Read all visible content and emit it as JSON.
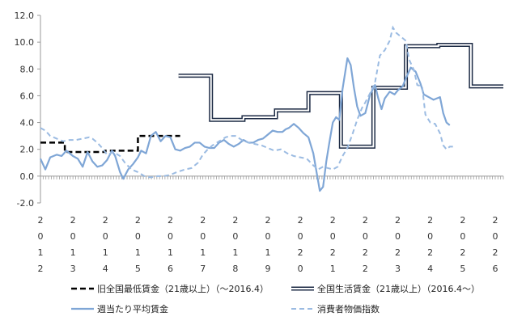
{
  "chart_data": {
    "type": "line",
    "ylim": [
      -2.0,
      12.0
    ],
    "y_ticks": [
      -2.0,
      0.0,
      2.0,
      4.0,
      6.0,
      8.0,
      10.0,
      12.0
    ],
    "y_tick_labels": [
      "-2.0",
      "0.0",
      "2.0",
      "4.0",
      "6.0",
      "8.0",
      "10.0",
      "12.0"
    ],
    "x_range": [
      2012.0,
      2026.25
    ],
    "x_ticks": [
      2012,
      2013,
      2014,
      2015,
      2016,
      2017,
      2018,
      2019,
      2020,
      2021,
      2022,
      2023,
      2024,
      2025,
      2026
    ],
    "x_tick_labels": [
      "2012",
      "2013",
      "2014",
      "2015",
      "2016",
      "2017",
      "2018",
      "2019",
      "2020",
      "2021",
      "2022",
      "2023",
      "2024",
      "2025",
      "2026"
    ],
    "gridlines": false,
    "legend_position": "bottom",
    "series": [
      {
        "name": "旧全国最低賃金（21歳以上）（～2016.4）",
        "style": "dashed-bold",
        "color": "#000000",
        "points": [
          [
            2012.0,
            2.5
          ],
          [
            2012.75,
            2.5
          ],
          [
            2012.75,
            1.8
          ],
          [
            2014.0,
            1.8
          ],
          [
            2014.0,
            1.9
          ],
          [
            2015.0,
            1.9
          ],
          [
            2015.0,
            3.0
          ],
          [
            2016.3,
            3.0
          ]
        ]
      },
      {
        "name": "全国生活賃金（21歳以上）（2016.4～）",
        "style": "double",
        "color": "#1c2a44",
        "points": [
          [
            2016.25,
            7.5
          ],
          [
            2017.25,
            7.5
          ],
          [
            2017.25,
            4.2
          ],
          [
            2018.25,
            4.2
          ],
          [
            2018.25,
            4.4
          ],
          [
            2019.25,
            4.4
          ],
          [
            2019.25,
            4.9
          ],
          [
            2020.25,
            4.9
          ],
          [
            2020.25,
            6.2
          ],
          [
            2021.25,
            6.2
          ],
          [
            2021.25,
            2.2
          ],
          [
            2022.25,
            2.2
          ],
          [
            2022.25,
            6.6
          ],
          [
            2023.25,
            6.6
          ],
          [
            2023.25,
            9.7
          ],
          [
            2024.25,
            9.7
          ],
          [
            2024.25,
            9.8
          ],
          [
            2025.25,
            9.8
          ],
          [
            2025.25,
            6.7
          ],
          [
            2026.25,
            6.7
          ]
        ]
      },
      {
        "name": "週当たり平均賃金",
        "style": "solid",
        "color": "#7fa6d6",
        "points": [
          [
            2012.0,
            1.3
          ],
          [
            2012.15,
            0.5
          ],
          [
            2012.3,
            1.4
          ],
          [
            2012.5,
            1.6
          ],
          [
            2012.65,
            1.5
          ],
          [
            2012.8,
            1.9
          ],
          [
            2013.0,
            1.5
          ],
          [
            2013.15,
            1.3
          ],
          [
            2013.3,
            0.7
          ],
          [
            2013.45,
            1.8
          ],
          [
            2013.6,
            1.1
          ],
          [
            2013.75,
            0.7
          ],
          [
            2013.9,
            0.8
          ],
          [
            2014.05,
            1.2
          ],
          [
            2014.2,
            1.9
          ],
          [
            2014.3,
            1.5
          ],
          [
            2014.45,
            0.3
          ],
          [
            2014.55,
            -0.2
          ],
          [
            2014.7,
            0.5
          ],
          [
            2014.85,
            0.9
          ],
          [
            2015.0,
            1.4
          ],
          [
            2015.1,
            1.9
          ],
          [
            2015.25,
            1.7
          ],
          [
            2015.4,
            3.0
          ],
          [
            2015.55,
            3.3
          ],
          [
            2015.7,
            2.6
          ],
          [
            2015.85,
            3.0
          ],
          [
            2016.0,
            2.9
          ],
          [
            2016.15,
            2.0
          ],
          [
            2016.3,
            1.9
          ],
          [
            2016.45,
            2.1
          ],
          [
            2016.6,
            2.2
          ],
          [
            2016.75,
            2.5
          ],
          [
            2016.9,
            2.5
          ],
          [
            2017.05,
            2.2
          ],
          [
            2017.2,
            2.1
          ],
          [
            2017.35,
            2.1
          ],
          [
            2017.5,
            2.5
          ],
          [
            2017.65,
            2.7
          ],
          [
            2017.8,
            2.4
          ],
          [
            2017.95,
            2.2
          ],
          [
            2018.1,
            2.4
          ],
          [
            2018.25,
            2.7
          ],
          [
            2018.4,
            2.5
          ],
          [
            2018.55,
            2.5
          ],
          [
            2018.7,
            2.7
          ],
          [
            2018.85,
            2.8
          ],
          [
            2019.0,
            3.1
          ],
          [
            2019.15,
            3.4
          ],
          [
            2019.3,
            3.3
          ],
          [
            2019.45,
            3.3
          ],
          [
            2019.55,
            3.5
          ],
          [
            2019.65,
            3.6
          ],
          [
            2019.8,
            3.9
          ],
          [
            2019.95,
            3.6
          ],
          [
            2020.1,
            3.2
          ],
          [
            2020.25,
            2.9
          ],
          [
            2020.4,
            1.7
          ],
          [
            2020.5,
            0.3
          ],
          [
            2020.6,
            -1.1
          ],
          [
            2020.7,
            -0.8
          ],
          [
            2020.8,
            1.1
          ],
          [
            2020.9,
            2.6
          ],
          [
            2021.0,
            4.0
          ],
          [
            2021.1,
            4.4
          ],
          [
            2021.2,
            4.2
          ],
          [
            2021.3,
            6.5
          ],
          [
            2021.45,
            8.8
          ],
          [
            2021.55,
            8.3
          ],
          [
            2021.65,
            6.6
          ],
          [
            2021.75,
            5.2
          ],
          [
            2021.85,
            4.5
          ],
          [
            2022.0,
            4.7
          ],
          [
            2022.15,
            6.1
          ],
          [
            2022.3,
            6.8
          ],
          [
            2022.4,
            5.8
          ],
          [
            2022.5,
            5.0
          ],
          [
            2022.6,
            5.8
          ],
          [
            2022.75,
            6.3
          ],
          [
            2022.9,
            6.1
          ],
          [
            2023.0,
            6.4
          ],
          [
            2023.15,
            6.7
          ],
          [
            2023.25,
            7.3
          ],
          [
            2023.4,
            8.1
          ],
          [
            2023.55,
            7.8
          ],
          [
            2023.7,
            6.9
          ],
          [
            2023.8,
            6.1
          ],
          [
            2023.95,
            5.9
          ],
          [
            2024.1,
            5.7
          ],
          [
            2024.2,
            5.8
          ],
          [
            2024.3,
            5.9
          ],
          [
            2024.4,
            4.7
          ],
          [
            2024.5,
            4.0
          ],
          [
            2024.6,
            3.8
          ]
        ]
      },
      {
        "name": "消費者物価指数",
        "style": "dashed",
        "color": "#9bbbe2",
        "points": [
          [
            2012.0,
            3.6
          ],
          [
            2012.15,
            3.4
          ],
          [
            2012.3,
            3.0
          ],
          [
            2012.5,
            2.8
          ],
          [
            2012.7,
            2.6
          ],
          [
            2012.9,
            2.7
          ],
          [
            2013.1,
            2.7
          ],
          [
            2013.3,
            2.8
          ],
          [
            2013.5,
            2.9
          ],
          [
            2013.6,
            2.8
          ],
          [
            2013.75,
            2.5
          ],
          [
            2013.9,
            2.1
          ],
          [
            2014.05,
            1.6
          ],
          [
            2014.25,
            1.8
          ],
          [
            2014.45,
            1.5
          ],
          [
            2014.6,
            1.0
          ],
          [
            2014.8,
            0.5
          ],
          [
            2015.0,
            0.3
          ],
          [
            2015.2,
            0.0
          ],
          [
            2015.4,
            -0.1
          ],
          [
            2015.6,
            0.0
          ],
          [
            2015.8,
            0.0
          ],
          [
            2016.0,
            0.1
          ],
          [
            2016.2,
            0.3
          ],
          [
            2016.45,
            0.5
          ],
          [
            2016.65,
            0.6
          ],
          [
            2016.85,
            1.0
          ],
          [
            2017.0,
            1.6
          ],
          [
            2017.15,
            2.0
          ],
          [
            2017.3,
            2.3
          ],
          [
            2017.5,
            2.6
          ],
          [
            2017.7,
            2.9
          ],
          [
            2017.85,
            3.0
          ],
          [
            2018.0,
            3.0
          ],
          [
            2018.2,
            2.7
          ],
          [
            2018.4,
            2.5
          ],
          [
            2018.6,
            2.4
          ],
          [
            2018.8,
            2.3
          ],
          [
            2019.0,
            2.1
          ],
          [
            2019.2,
            1.9
          ],
          [
            2019.4,
            2.0
          ],
          [
            2019.6,
            1.7
          ],
          [
            2019.8,
            1.5
          ],
          [
            2020.0,
            1.4
          ],
          [
            2020.2,
            1.3
          ],
          [
            2020.4,
            0.8
          ],
          [
            2020.55,
            0.5
          ],
          [
            2020.7,
            0.7
          ],
          [
            2020.85,
            0.6
          ],
          [
            2021.0,
            0.5
          ],
          [
            2021.15,
            0.7
          ],
          [
            2021.3,
            1.5
          ],
          [
            2021.45,
            2.1
          ],
          [
            2021.6,
            3.1
          ],
          [
            2021.75,
            4.2
          ],
          [
            2021.9,
            5.1
          ],
          [
            2022.0,
            5.5
          ],
          [
            2022.15,
            6.2
          ],
          [
            2022.3,
            7.0
          ],
          [
            2022.45,
            9.0
          ],
          [
            2022.6,
            9.4
          ],
          [
            2022.75,
            10.1
          ],
          [
            2022.85,
            11.1
          ],
          [
            2022.95,
            10.7
          ],
          [
            2023.1,
            10.4
          ],
          [
            2023.25,
            10.1
          ],
          [
            2023.35,
            8.7
          ],
          [
            2023.5,
            7.9
          ],
          [
            2023.6,
            6.8
          ],
          [
            2023.75,
            6.7
          ],
          [
            2023.85,
            4.6
          ],
          [
            2024.0,
            4.0
          ],
          [
            2024.15,
            3.9
          ],
          [
            2024.3,
            3.2
          ],
          [
            2024.4,
            2.3
          ],
          [
            2024.5,
            2.0
          ],
          [
            2024.6,
            2.2
          ],
          [
            2024.7,
            2.2
          ]
        ]
      }
    ]
  }
}
